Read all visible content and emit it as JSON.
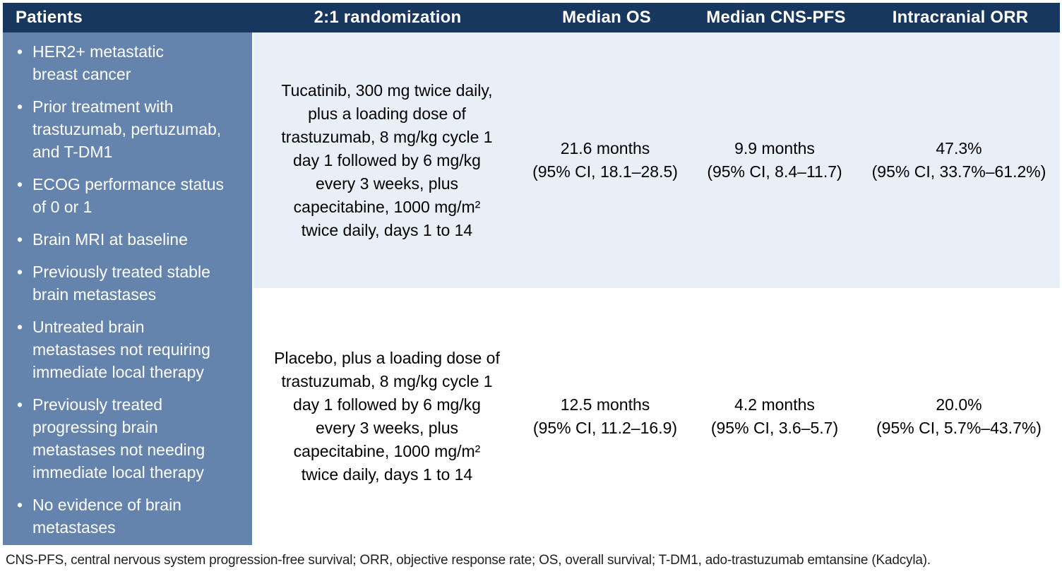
{
  "table": {
    "columns": {
      "patients": "Patients",
      "randomization": "2:1 randomization",
      "median_os": "Median OS",
      "median_cns_pfs": "Median CNS-PFS",
      "intracranial_orr": "Intracranial ORR"
    },
    "patients_criteria": [
      "HER2+ metastatic\nbreast cancer",
      "Prior treatment with\ntrastuzumab, pertuzumab,\nand T-DM1",
      "ECOG performance status\nof 0 or 1",
      "Brain MRI at baseline",
      "Previously treated stable\nbrain metastases",
      "Untreated brain\nmetastases not requiring\nimmediate local therapy",
      "Previously treated\nprogressing brain\nmetastases not needing\nimmediate local therapy",
      "No evidence of brain\nmetastases"
    ],
    "arms": [
      {
        "name": "tucatinib",
        "regimen": "Tucatinib, 300 mg twice daily,\nplus a loading dose of\ntrastuzumab, 8 mg/kg cycle 1\nday 1 followed by 6 mg/kg\nevery 3 weeks, plus\ncapecitabine, 1000 mg/m²\ntwice daily, days 1 to 14",
        "median_os": {
          "value": "21.6 months",
          "ci": "(95% CI, 18.1–28.5)"
        },
        "median_cns_pfs": {
          "value": "9.9 months",
          "ci": "(95% CI, 8.4–11.7)"
        },
        "intracranial_orr": {
          "value": "47.3%",
          "ci": "(95% CI, 33.7%–61.2%)"
        }
      },
      {
        "name": "placebo",
        "regimen": "Placebo, plus a loading dose of\ntrastuzumab, 8 mg/kg cycle 1\nday 1 followed by 6 mg/kg\nevery 3 weeks, plus\ncapecitabine, 1000 mg/m²\ntwice daily, days 1 to 14",
        "median_os": {
          "value": "12.5 months",
          "ci": "(95% CI, 11.2–16.9)"
        },
        "median_cns_pfs": {
          "value": "4.2 months",
          "ci": "(95% CI, 3.6–5.7)"
        },
        "intracranial_orr": {
          "value": "20.0%",
          "ci": "(95% CI, 5.7%–43.7%)"
        }
      }
    ],
    "footnote": "CNS-PFS, central nervous system progression-free survival; ORR, objective response rate; OS, overall survival; T-DM1, ado-trastuzumab emtansine (Kadcyla)."
  },
  "colors": {
    "header_bg": "#17375E",
    "sidebar_bg": "#6484AE",
    "row_alt_bg": "#E9EFF7",
    "row_plain_bg": "#FFFFFF",
    "header_text": "#FFFFFF",
    "body_text": "#000000",
    "footnote_text": "#231F20"
  }
}
